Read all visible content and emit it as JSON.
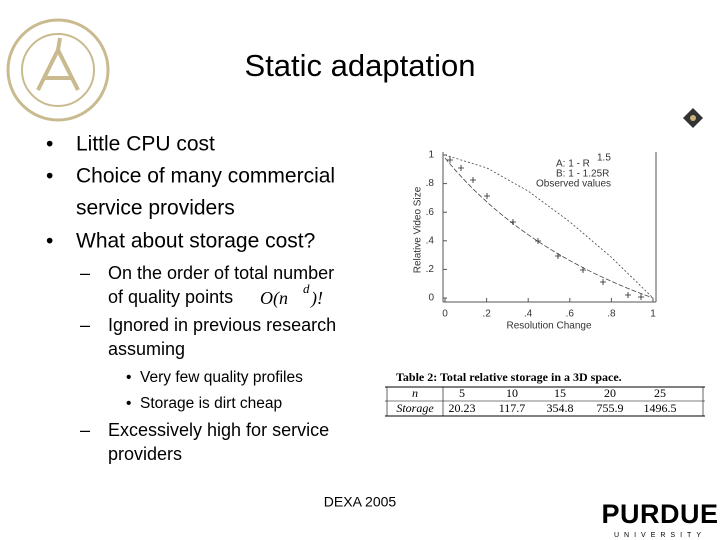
{
  "title": "Static adaptation",
  "bullets": [
    "Little CPU cost",
    "Choice of many commercial",
    "service providers",
    "What about storage cost?"
  ],
  "sub_bullets": {
    "first": [
      "On the order of total number",
      "of quality points"
    ],
    "math": {
      "base": "O(n",
      "exponent": "d",
      "tail": ")!"
    },
    "second": [
      "Ignored in previous research",
      "assuming"
    ],
    "third": [
      "Excessively high for service",
      "providers"
    ]
  },
  "sub_sub_bullets": [
    "Very few quality profiles",
    "Storage is dirt cheap"
  ],
  "figure": {
    "y_label": "Relative Video Size",
    "x_label": "Resolution Change",
    "yticks": [
      "1",
      ".8",
      ".6",
      ".4",
      ".2",
      "0"
    ],
    "xticks": [
      "0",
      ".2",
      ".4",
      ".6",
      ".8",
      "1"
    ],
    "legend": [
      {
        "text": "A: 1 - R",
        "sup": "1.5"
      },
      {
        "text": "B: 1 - 1.25R",
        "sup": ""
      },
      {
        "text": "Observed values",
        "sup": ""
      }
    ]
  },
  "table": {
    "caption": "Table 2:  Total relative storage in a 3D space.",
    "rows": [
      [
        "n",
        "5",
        "10",
        "15",
        "20",
        "25"
      ],
      [
        "Storage",
        "20.23",
        "117.7",
        "354.8",
        "755.9",
        "1496.5"
      ]
    ]
  },
  "footer": "DEXA 2005",
  "logo": {
    "name": "PURDUE",
    "sub": "UNIVERSITY"
  }
}
